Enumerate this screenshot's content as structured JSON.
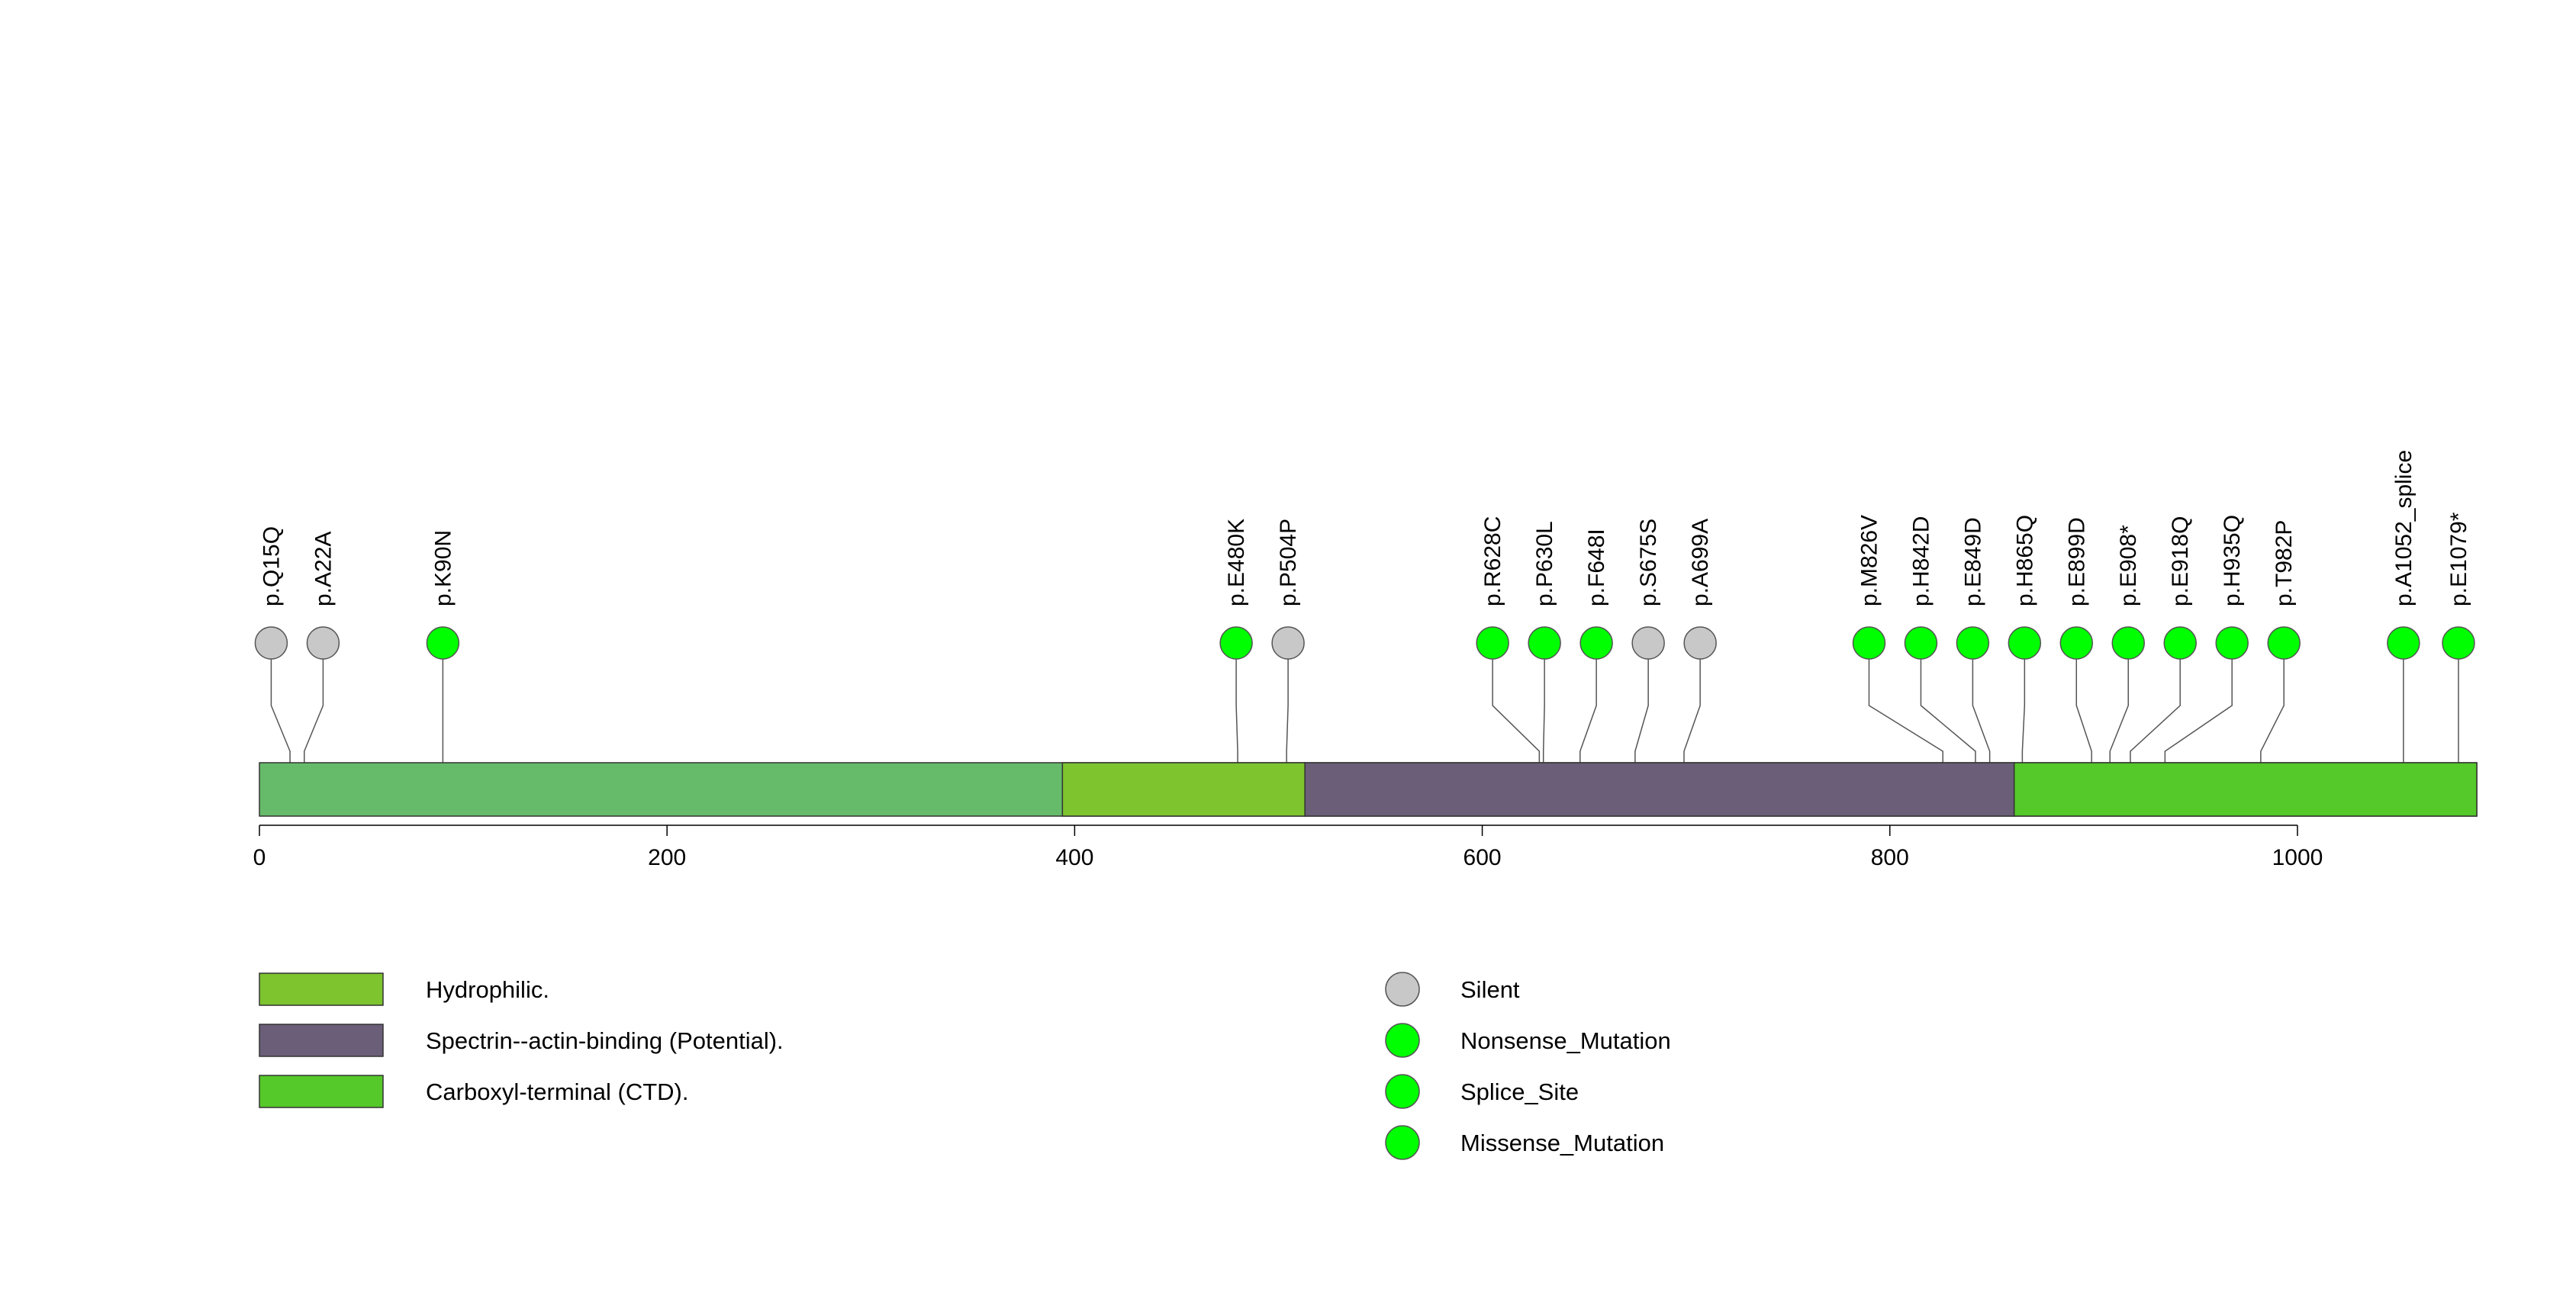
{
  "chart_data": {
    "type": "lollipop",
    "protein_length": 1088,
    "xlim": [
      0,
      1088
    ],
    "x_ticks": [
      {
        "value": 0,
        "label": "0"
      },
      {
        "value": 200,
        "label": "200"
      },
      {
        "value": 400,
        "label": "400"
      },
      {
        "value": 600,
        "label": "600"
      },
      {
        "value": 800,
        "label": "800"
      },
      {
        "value": 1000,
        "label": "1000"
      }
    ],
    "base_color": "#66BB6A",
    "domains": [
      {
        "name": "Hydrophilic.",
        "start": 394,
        "end": 513,
        "color": "#7DC42F"
      },
      {
        "name": "Spectrin--actin-binding (Potential).",
        "start": 513,
        "end": 861,
        "color": "#6B5E78"
      },
      {
        "name": "Carboxyl-terminal (CTD).",
        "start": 861,
        "end": 1088,
        "color": "#55C82A"
      }
    ],
    "mutations": [
      {
        "label": "p.Q15Q",
        "position": 15,
        "type": "Silent"
      },
      {
        "label": "p.A22A",
        "position": 22,
        "type": "Silent"
      },
      {
        "label": "p.K90N",
        "position": 90,
        "type": "Missense_Mutation"
      },
      {
        "label": "p.E480K",
        "position": 480,
        "type": "Missense_Mutation"
      },
      {
        "label": "p.P504P",
        "position": 504,
        "type": "Silent"
      },
      {
        "label": "p.R628C",
        "position": 628,
        "type": "Missense_Mutation"
      },
      {
        "label": "p.P630L",
        "position": 630,
        "type": "Missense_Mutation"
      },
      {
        "label": "p.F648I",
        "position": 648,
        "type": "Missense_Mutation"
      },
      {
        "label": "p.S675S",
        "position": 675,
        "type": "Silent"
      },
      {
        "label": "p.A699A",
        "position": 699,
        "type": "Silent"
      },
      {
        "label": "p.M826V",
        "position": 826,
        "type": "Missense_Mutation"
      },
      {
        "label": "p.H842D",
        "position": 842,
        "type": "Missense_Mutation"
      },
      {
        "label": "p.E849D",
        "position": 849,
        "type": "Missense_Mutation"
      },
      {
        "label": "p.H865Q",
        "position": 865,
        "type": "Missense_Mutation"
      },
      {
        "label": "p.E899D",
        "position": 899,
        "type": "Missense_Mutation"
      },
      {
        "label": "p.E908*",
        "position": 908,
        "type": "Nonsense_Mutation"
      },
      {
        "label": "p.E918Q",
        "position": 918,
        "type": "Missense_Mutation"
      },
      {
        "label": "p.H935Q",
        "position": 935,
        "type": "Missense_Mutation"
      },
      {
        "label": "p.T982P",
        "position": 982,
        "type": "Missense_Mutation"
      },
      {
        "label": "p.A1052_splice",
        "position": 1052,
        "type": "Splice_Site"
      },
      {
        "label": "p.E1079*",
        "position": 1079,
        "type": "Nonsense_Mutation"
      }
    ],
    "legend_domains": [
      {
        "label": "Hydrophilic.",
        "color": "#7DC42F"
      },
      {
        "label": "Spectrin--actin-binding (Potential).",
        "color": "#6B5E78"
      },
      {
        "label": "Carboxyl-terminal (CTD).",
        "color": "#55C82A"
      }
    ],
    "legend_mutation_types": [
      {
        "label": "Silent",
        "color": "#C8C8C8"
      },
      {
        "label": "Nonsense_Mutation",
        "color": "#00FF00"
      },
      {
        "label": "Splice_Site",
        "color": "#00FF00"
      },
      {
        "label": "Missense_Mutation",
        "color": "#00FF00"
      }
    ],
    "type_colors": {
      "Silent": "#C8C8C8",
      "Nonsense_Mutation": "#00FF00",
      "Splice_Site": "#00FF00",
      "Missense_Mutation": "#00FF00"
    }
  }
}
